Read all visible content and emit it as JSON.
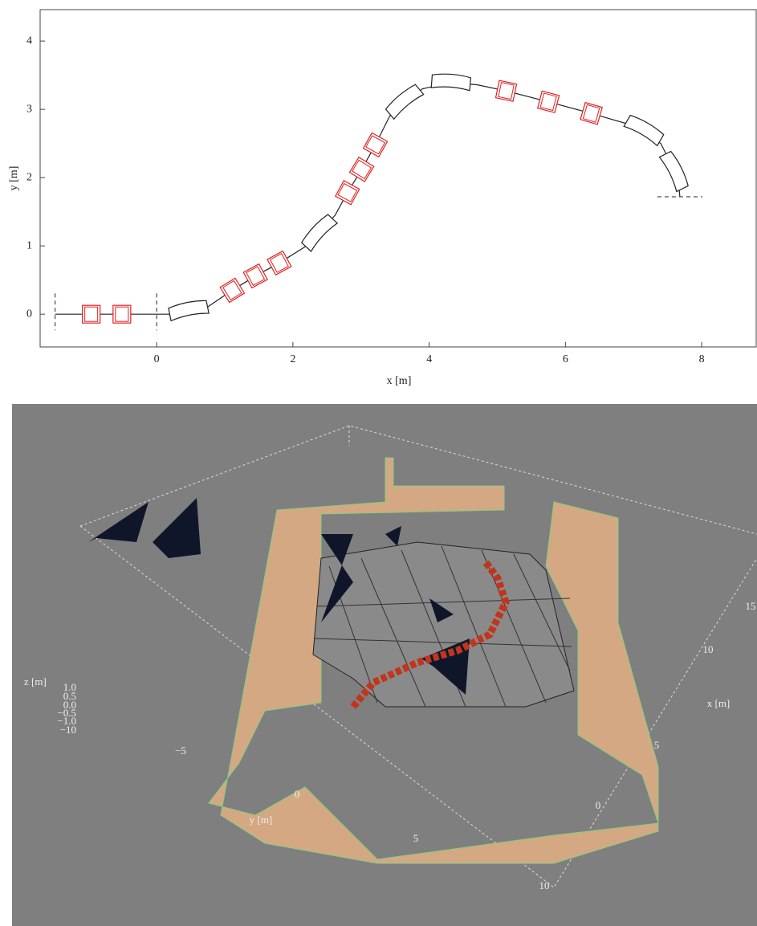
{
  "chart_data": {
    "type": "beamline",
    "xlabel": "x [m]",
    "ylabel": "y [m]",
    "xlim": [
      -1.71,
      8.8
    ],
    "ylim": [
      -0.48,
      4.46
    ],
    "xticks": [
      0,
      2,
      4,
      6,
      8
    ],
    "yticks": [
      0,
      1,
      2,
      3,
      4
    ],
    "centerline": {
      "color": "#222",
      "x": [
        -1.49,
        0,
        0.24,
        0.74,
        1.11,
        1.45,
        1.8,
        2.2,
        2.62,
        2.8,
        3.01,
        3.21,
        3.42,
        3.9,
        4.3,
        4.7,
        5.13,
        5.75,
        6.38,
        6.9,
        7.4,
        7.65,
        7.68
      ],
      "y": [
        0,
        0,
        0,
        0.1,
        0.35,
        0.56,
        0.75,
        1.0,
        1.45,
        1.78,
        2.12,
        2.48,
        2.9,
        3.3,
        3.39,
        3.36,
        3.27,
        3.11,
        2.94,
        2.79,
        2.5,
        2.0,
        1.72
      ]
    },
    "quadrupoles": {
      "color": "#e02020",
      "x": [
        -0.96,
        -0.51,
        1.11,
        1.45,
        1.8,
        2.8,
        3.01,
        3.21,
        5.13,
        5.75,
        6.38
      ],
      "y": [
        0,
        0,
        0.35,
        0.56,
        0.75,
        1.78,
        2.12,
        2.48,
        3.27,
        3.11,
        2.94
      ]
    },
    "dipoles": {
      "color": "#222",
      "x": [
        0.47,
        2.39,
        3.64,
        4.32,
        7.15,
        7.59
      ],
      "y": [
        0.05,
        1.19,
        3.11,
        3.39,
        2.69,
        2.09
      ]
    }
  },
  "render": {
    "z_label": "z [m]",
    "z_ticks": [
      "1.0",
      "0.5",
      "0.0",
      "−0.5",
      "−1.0",
      "−10"
    ],
    "y_label": "y [m]",
    "y_ticks": [
      "−5",
      "0",
      "5"
    ],
    "x_label": "x [m]",
    "x_ticks": [
      "15",
      "10",
      "5",
      "0",
      "10"
    ]
  }
}
